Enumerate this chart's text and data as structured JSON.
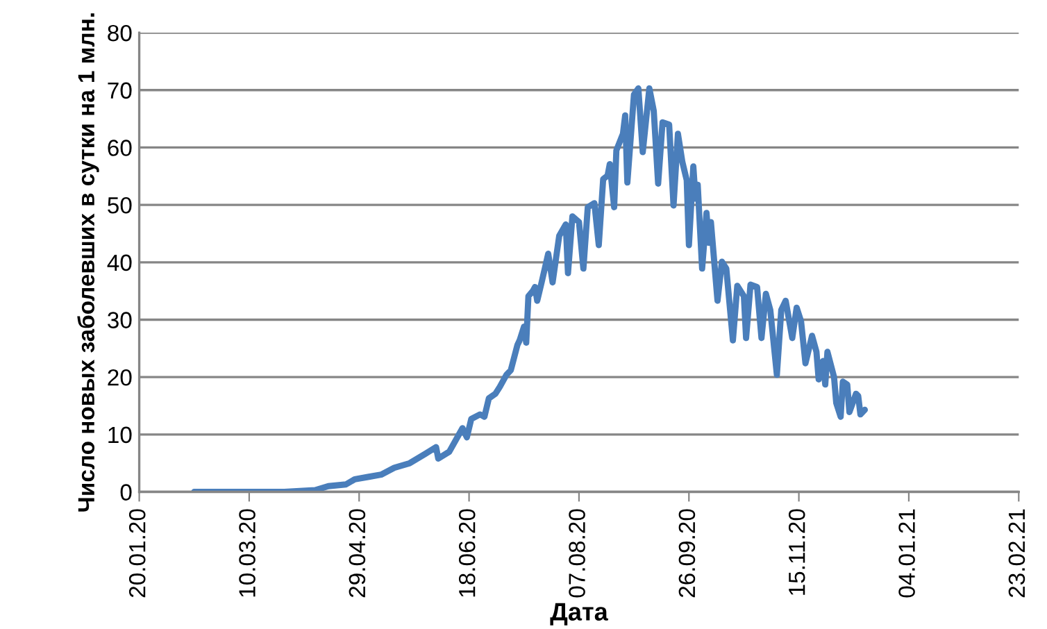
{
  "chart_data": {
    "type": "line",
    "xlabel": "Дата",
    "ylabel": "Число новых заболевших в сутки на 1 млн.",
    "x": [
      "2020-02-14",
      "2020-03-26",
      "2020-04-09",
      "2020-04-15",
      "2020-04-23",
      "2020-04-27",
      "2020-05-03",
      "2020-05-09",
      "2020-05-15",
      "2020-05-22",
      "2020-05-29",
      "2020-06-03",
      "2020-06-04",
      "2020-06-09",
      "2020-06-15",
      "2020-06-17",
      "2020-06-19",
      "2020-06-23",
      "2020-06-25",
      "2020-06-27",
      "2020-06-30",
      "2020-07-02",
      "2020-07-05",
      "2020-07-07",
      "2020-07-10",
      "2020-07-11",
      "2020-07-13",
      "2020-07-14",
      "2020-07-15",
      "2020-07-17",
      "2020-07-18",
      "2020-07-19",
      "2020-07-21",
      "2020-07-24",
      "2020-07-26",
      "2020-07-29",
      "2020-08-01",
      "2020-08-02",
      "2020-08-04",
      "2020-08-07",
      "2020-08-09",
      "2020-08-11",
      "2020-08-14",
      "2020-08-16",
      "2020-08-18",
      "2020-08-20",
      "2020-08-21",
      "2020-08-23",
      "2020-08-24",
      "2020-08-27",
      "2020-08-28",
      "2020-08-29",
      "2020-09-01",
      "2020-09-03",
      "2020-09-05",
      "2020-09-08",
      "2020-09-10",
      "2020-09-12",
      "2020-09-14",
      "2020-09-17",
      "2020-09-19",
      "2020-09-21",
      "2020-09-23",
      "2020-09-25",
      "2020-09-26",
      "2020-09-28",
      "2020-09-29",
      "2020-09-30",
      "2020-10-02",
      "2020-10-04",
      "2020-10-05",
      "2020-10-06",
      "2020-10-09",
      "2020-10-11",
      "2020-10-13",
      "2020-10-16",
      "2020-10-18",
      "2020-10-21",
      "2020-10-22",
      "2020-10-24",
      "2020-10-27",
      "2020-10-29",
      "2020-10-31",
      "2020-11-02",
      "2020-11-05",
      "2020-11-07",
      "2020-11-09",
      "2020-11-12",
      "2020-11-14",
      "2020-11-16",
      "2020-11-18",
      "2020-11-21",
      "2020-11-23",
      "2020-11-24",
      "2020-11-26",
      "2020-11-27",
      "2020-11-28",
      "2020-12-01",
      "2020-12-02",
      "2020-12-04",
      "2020-12-05",
      "2020-12-07",
      "2020-12-08",
      "2020-12-11",
      "2020-12-12",
      "2020-12-13",
      "2020-12-15"
    ],
    "series": [
      {
        "color": "#4a7ebb",
        "values": [
          0,
          0,
          0.3,
          1.0,
          1.3,
          2.2,
          2.6,
          3.0,
          4.2,
          5.0,
          6.6,
          7.8,
          5.8,
          7.0,
          11.1,
          9.5,
          12.7,
          13.5,
          13.1,
          16.3,
          17.1,
          18.3,
          20.4,
          21.2,
          25.6,
          26.4,
          28.8,
          26.0,
          34.1,
          35.0,
          35.7,
          33.3,
          36.5,
          41.5,
          36.5,
          44.6,
          46.6,
          38.1,
          48.0,
          47.0,
          38.9,
          49.6,
          50.3,
          43.0,
          54.5,
          55.1,
          57.1,
          49.6,
          59.5,
          62.4,
          65.6,
          53.9,
          69.2,
          70.3,
          59.2,
          70.3,
          66.4,
          53.7,
          64.4,
          64.0,
          49.9,
          62.4,
          57.5,
          54.3,
          43.0,
          56.7,
          51.1,
          53.5,
          38.9,
          48.6,
          43.4,
          47.0,
          33.3,
          40.1,
          38.9,
          26.4,
          35.9,
          34.1,
          26.8,
          36.1,
          35.7,
          26.8,
          34.5,
          31.7,
          20.4,
          31.7,
          33.3,
          26.8,
          32.1,
          29.7,
          22.4,
          27.2,
          24.4,
          19.6,
          22.8,
          18.7,
          24.4,
          20.0,
          15.5,
          13.1,
          19.2,
          18.7,
          13.9,
          17.1,
          16.7,
          13.5,
          14.3
        ]
      }
    ],
    "xlim": [
      "2020-01-20",
      "2021-02-23"
    ],
    "xticks": [
      {
        "value": "2020-01-20",
        "label": "20.01.20"
      },
      {
        "value": "2020-03-10",
        "label": "10.03.20"
      },
      {
        "value": "2020-04-29",
        "label": "29.04.20"
      },
      {
        "value": "2020-06-18",
        "label": "18.06.20"
      },
      {
        "value": "2020-08-07",
        "label": "07.08.20"
      },
      {
        "value": "2020-09-26",
        "label": "26.09.20"
      },
      {
        "value": "2020-11-15",
        "label": "15.11.20"
      },
      {
        "value": "2021-01-04",
        "label": "04.01.21"
      },
      {
        "value": "2021-02-23",
        "label": "23.02.21"
      }
    ],
    "ylim": [
      0,
      80
    ],
    "yticks": [
      0,
      10,
      20,
      30,
      40,
      50,
      60,
      70,
      80
    ],
    "grid": "y",
    "legend": false,
    "marker": "none",
    "line_style": "solid"
  }
}
